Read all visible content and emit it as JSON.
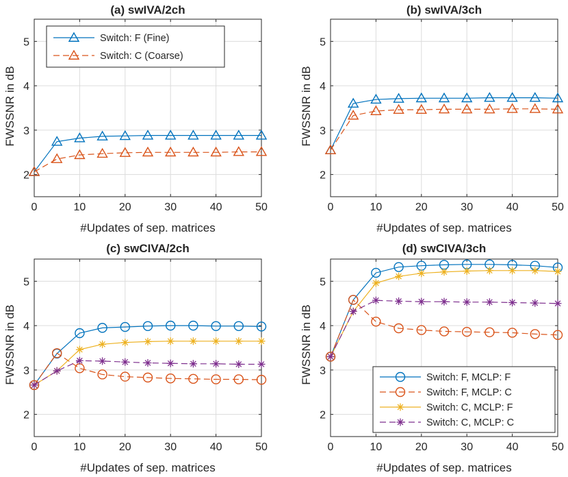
{
  "chart_data": [
    {
      "type": "line",
      "title": "(a) swIVA/2ch",
      "xlabel": "#Updates of sep. matrices",
      "ylabel": "FWSSNR in dB",
      "xlim": [
        0,
        50
      ],
      "ylim": [
        1.5,
        5.5
      ],
      "xticks": [
        0,
        10,
        20,
        30,
        40,
        50
      ],
      "yticks": [
        2,
        3,
        4,
        5
      ],
      "grid": true,
      "legend_position": "top-left",
      "x": [
        0,
        5,
        10,
        15,
        20,
        25,
        30,
        35,
        40,
        45,
        50
      ],
      "series": [
        {
          "name": "Switch: F (Fine)",
          "color": "#0072bd",
          "marker": "triangle",
          "dash": "solid",
          "values": [
            2.06,
            2.74,
            2.82,
            2.86,
            2.87,
            2.88,
            2.88,
            2.88,
            2.88,
            2.88,
            2.88
          ]
        },
        {
          "name": "Switch: C (Coarse)",
          "color": "#d95319",
          "marker": "triangle",
          "dash": "dashed",
          "values": [
            2.06,
            2.35,
            2.44,
            2.47,
            2.49,
            2.5,
            2.5,
            2.5,
            2.5,
            2.51,
            2.51
          ]
        }
      ]
    },
    {
      "type": "line",
      "title": "(b) swIVA/3ch",
      "xlabel": "#Updates of sep. matrices",
      "ylabel": "FWSSNR in dB",
      "xlim": [
        0,
        50
      ],
      "ylim": [
        1.5,
        5.5
      ],
      "xticks": [
        0,
        10,
        20,
        30,
        40,
        50
      ],
      "yticks": [
        2,
        3,
        4,
        5
      ],
      "grid": true,
      "legend_position": "none",
      "x": [
        0,
        5,
        10,
        15,
        20,
        25,
        30,
        35,
        40,
        45,
        50
      ],
      "series": [
        {
          "name": "Switch: F (Fine)",
          "color": "#0072bd",
          "marker": "triangle",
          "dash": "solid",
          "values": [
            2.55,
            3.6,
            3.69,
            3.71,
            3.72,
            3.72,
            3.72,
            3.73,
            3.73,
            3.73,
            3.72
          ]
        },
        {
          "name": "Switch: C (Coarse)",
          "color": "#d95319",
          "marker": "triangle",
          "dash": "dashed",
          "values": [
            2.55,
            3.33,
            3.43,
            3.46,
            3.46,
            3.47,
            3.47,
            3.47,
            3.48,
            3.48,
            3.47
          ]
        }
      ]
    },
    {
      "type": "line",
      "title": "(c) swCIVA/2ch",
      "xlabel": "#Updates of sep. matrices",
      "ylabel": "FWSSNR in dB",
      "xlim": [
        0,
        50
      ],
      "ylim": [
        1.5,
        5.5
      ],
      "xticks": [
        0,
        10,
        20,
        30,
        40,
        50
      ],
      "yticks": [
        2,
        3,
        4,
        5
      ],
      "grid": true,
      "legend_position": "none",
      "x": [
        0,
        5,
        10,
        15,
        20,
        25,
        30,
        35,
        40,
        45,
        50
      ],
      "series": [
        {
          "name": "Switch: F, MCLP: F",
          "color": "#0072bd",
          "marker": "circle",
          "dash": "solid",
          "values": [
            2.66,
            3.37,
            3.83,
            3.95,
            3.97,
            3.99,
            4.0,
            4.0,
            3.99,
            3.99,
            3.98
          ]
        },
        {
          "name": "Switch: F, MCLP: C",
          "color": "#d95319",
          "marker": "circle",
          "dash": "dashed",
          "values": [
            2.66,
            3.38,
            3.04,
            2.9,
            2.85,
            2.83,
            2.81,
            2.8,
            2.79,
            2.79,
            2.78
          ]
        },
        {
          "name": "Switch: C, MCLP: F",
          "color": "#edb120",
          "marker": "asterisk",
          "dash": "solid",
          "values": [
            2.66,
            2.98,
            3.46,
            3.58,
            3.62,
            3.64,
            3.65,
            3.65,
            3.65,
            3.65,
            3.65
          ]
        },
        {
          "name": "Switch: C, MCLP: C",
          "color": "#7e2f8e",
          "marker": "asterisk",
          "dash": "dashed",
          "values": [
            2.66,
            2.98,
            3.21,
            3.2,
            3.18,
            3.16,
            3.15,
            3.14,
            3.14,
            3.13,
            3.13
          ]
        }
      ]
    },
    {
      "type": "line",
      "title": "(d) swCIVA/3ch",
      "xlabel": "#Updates of sep. matrices",
      "ylabel": "FWSSNR in dB",
      "xlim": [
        0,
        50
      ],
      "ylim": [
        1.5,
        5.5
      ],
      "xticks": [
        0,
        10,
        20,
        30,
        40,
        50
      ],
      "yticks": [
        2,
        3,
        4,
        5
      ],
      "grid": true,
      "legend_position": "bottom-right",
      "x": [
        0,
        5,
        10,
        15,
        20,
        25,
        30,
        35,
        40,
        45,
        50
      ],
      "series": [
        {
          "name": "Switch: F, MCLP: F",
          "color": "#0072bd",
          "marker": "circle",
          "dash": "solid",
          "values": [
            3.3,
            4.58,
            5.19,
            5.32,
            5.35,
            5.37,
            5.38,
            5.38,
            5.37,
            5.35,
            5.31
          ]
        },
        {
          "name": "Switch: F, MCLP: C",
          "color": "#d95319",
          "marker": "circle",
          "dash": "dashed",
          "values": [
            3.3,
            4.58,
            4.09,
            3.94,
            3.9,
            3.87,
            3.86,
            3.85,
            3.84,
            3.81,
            3.79
          ]
        },
        {
          "name": "Switch: C, MCLP: F",
          "color": "#edb120",
          "marker": "asterisk",
          "dash": "solid",
          "values": [
            3.3,
            4.32,
            4.96,
            5.11,
            5.18,
            5.21,
            5.23,
            5.24,
            5.24,
            5.24,
            5.22
          ]
        },
        {
          "name": "Switch: C, MCLP: C",
          "color": "#7e2f8e",
          "marker": "asterisk",
          "dash": "dashed",
          "values": [
            3.3,
            4.32,
            4.57,
            4.55,
            4.54,
            4.54,
            4.53,
            4.53,
            4.52,
            4.51,
            4.5
          ]
        }
      ]
    }
  ]
}
